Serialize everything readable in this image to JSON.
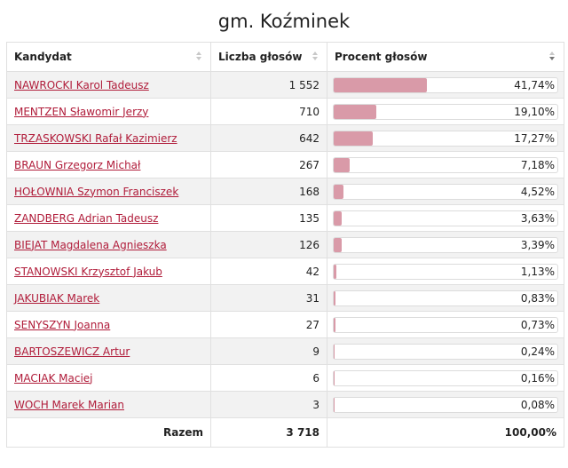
{
  "title": "gm. Koźminek",
  "columns": {
    "candidate": "Kandydat",
    "votes": "Liczba głosów",
    "percent": "Procent głosów"
  },
  "rows": [
    {
      "name": "NAWROCKI Karol Tadeusz",
      "votes": "1 552",
      "percent_label": "41,74%",
      "percent": 41.74
    },
    {
      "name": "MENTZEN Sławomir Jerzy",
      "votes": "710",
      "percent_label": "19,10%",
      "percent": 19.1
    },
    {
      "name": "TRZASKOWSKI Rafał Kazimierz",
      "votes": "642",
      "percent_label": "17,27%",
      "percent": 17.27
    },
    {
      "name": "BRAUN Grzegorz Michał",
      "votes": "267",
      "percent_label": "7,18%",
      "percent": 7.18
    },
    {
      "name": "HOŁOWNIA Szymon Franciszek",
      "votes": "168",
      "percent_label": "4,52%",
      "percent": 4.52
    },
    {
      "name": "ZANDBERG Adrian Tadeusz",
      "votes": "135",
      "percent_label": "3,63%",
      "percent": 3.63
    },
    {
      "name": "BIEJAT Magdalena Agnieszka",
      "votes": "126",
      "percent_label": "3,39%",
      "percent": 3.39
    },
    {
      "name": "STANOWSKI Krzysztof Jakub",
      "votes": "42",
      "percent_label": "1,13%",
      "percent": 1.13
    },
    {
      "name": "JAKUBIAK Marek",
      "votes": "31",
      "percent_label": "0,83%",
      "percent": 0.83
    },
    {
      "name": "SENYSZYN Joanna",
      "votes": "27",
      "percent_label": "0,73%",
      "percent": 0.73
    },
    {
      "name": "BARTOSZEWICZ Artur",
      "votes": "9",
      "percent_label": "0,24%",
      "percent": 0.24
    },
    {
      "name": "MACIAK Maciej",
      "votes": "6",
      "percent_label": "0,16%",
      "percent": 0.16
    },
    {
      "name": "WOCH Marek Marian",
      "votes": "3",
      "percent_label": "0,08%",
      "percent": 0.08
    }
  ],
  "totals": {
    "label": "Razem",
    "votes": "3 718",
    "percent": "100,00%"
  },
  "colors": {
    "bar": "#d99aa8",
    "link": "#b01c3a"
  }
}
